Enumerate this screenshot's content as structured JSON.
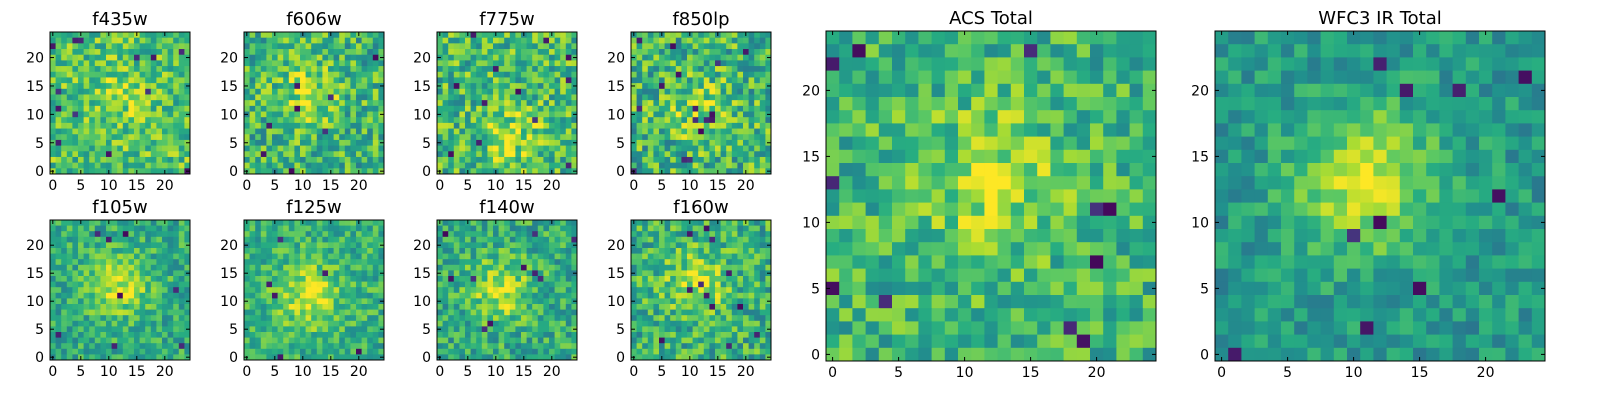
{
  "figure": {
    "description_colormap": "viridis",
    "grid_size": 25
  },
  "chart_data": [
    {
      "type": "heatmap",
      "title": "f435w",
      "cmap": "viridis",
      "rows": 25,
      "cols": 25,
      "xticks": [
        0,
        5,
        10,
        15,
        20
      ],
      "yticks": [
        0,
        5,
        10,
        15,
        20
      ],
      "xlim": [
        0,
        24
      ],
      "ylim": [
        0,
        24
      ],
      "seed": 11,
      "mean": 0.72,
      "noise": 0.22,
      "blob": 0.1,
      "dark_count": 14,
      "blob_center": [
        12,
        13
      ]
    },
    {
      "type": "heatmap",
      "title": "f606w",
      "cmap": "viridis",
      "rows": 25,
      "cols": 25,
      "xticks": [
        0,
        5,
        10,
        15,
        20
      ],
      "yticks": [
        0,
        5,
        10,
        15,
        20
      ],
      "xlim": [
        0,
        24
      ],
      "ylim": [
        0,
        24
      ],
      "seed": 23,
      "mean": 0.66,
      "noise": 0.24,
      "blob": 0.22,
      "dark_count": 8,
      "blob_center": [
        11,
        14
      ]
    },
    {
      "type": "heatmap",
      "title": "f775w",
      "cmap": "viridis",
      "rows": 25,
      "cols": 25,
      "xticks": [
        0,
        5,
        10,
        15,
        20
      ],
      "yticks": [
        0,
        5,
        10,
        15,
        20
      ],
      "xlim": [
        0,
        24
      ],
      "ylim": [
        0,
        24
      ],
      "seed": 37,
      "mean": 0.68,
      "noise": 0.24,
      "blob": 0.18,
      "dark_count": 12,
      "blob_center": [
        13,
        6
      ]
    },
    {
      "type": "heatmap",
      "title": "f850lp",
      "cmap": "viridis",
      "rows": 25,
      "cols": 25,
      "xticks": [
        0,
        5,
        10,
        15,
        20
      ],
      "yticks": [
        0,
        5,
        10,
        15,
        20
      ],
      "xlim": [
        0,
        24
      ],
      "ylim": [
        0,
        24
      ],
      "seed": 41,
      "mean": 0.66,
      "noise": 0.26,
      "blob": 0.2,
      "dark_count": 16,
      "blob_center": [
        12,
        11
      ]
    },
    {
      "type": "heatmap",
      "title": "f105w",
      "cmap": "viridis",
      "rows": 25,
      "cols": 25,
      "xticks": [
        0,
        5,
        10,
        15,
        20
      ],
      "yticks": [
        0,
        5,
        10,
        15,
        20
      ],
      "xlim": [
        0,
        24
      ],
      "ylim": [
        0,
        24
      ],
      "seed": 53,
      "mean": 0.62,
      "noise": 0.18,
      "blob": 0.3,
      "dark_count": 8,
      "blob_center": [
        12,
        13
      ]
    },
    {
      "type": "heatmap",
      "title": "f125w",
      "cmap": "viridis",
      "rows": 25,
      "cols": 25,
      "xticks": [
        0,
        5,
        10,
        15,
        20
      ],
      "yticks": [
        0,
        5,
        10,
        15,
        20
      ],
      "xlim": [
        0,
        24
      ],
      "ylim": [
        0,
        24
      ],
      "seed": 67,
      "mean": 0.64,
      "noise": 0.18,
      "blob": 0.3,
      "dark_count": 6,
      "blob_center": [
        11,
        11
      ]
    },
    {
      "type": "heatmap",
      "title": "f140w",
      "cmap": "viridis",
      "rows": 25,
      "cols": 25,
      "xticks": [
        0,
        5,
        10,
        15,
        20
      ],
      "yticks": [
        0,
        5,
        10,
        15,
        20
      ],
      "xlim": [
        0,
        24
      ],
      "ylim": [
        0,
        24
      ],
      "seed": 79,
      "mean": 0.62,
      "noise": 0.2,
      "blob": 0.28,
      "dark_count": 10,
      "blob_center": [
        11,
        12
      ]
    },
    {
      "type": "heatmap",
      "title": "f160w",
      "cmap": "viridis",
      "rows": 25,
      "cols": 25,
      "xticks": [
        0,
        5,
        10,
        15,
        20
      ],
      "yticks": [
        0,
        5,
        10,
        15,
        20
      ],
      "xlim": [
        0,
        24
      ],
      "ylim": [
        0,
        24
      ],
      "seed": 83,
      "mean": 0.64,
      "noise": 0.22,
      "blob": 0.26,
      "dark_count": 12,
      "blob_center": [
        11,
        13
      ]
    },
    {
      "type": "heatmap",
      "title": "ACS Total",
      "cmap": "viridis",
      "rows": 25,
      "cols": 25,
      "xticks": [
        0,
        5,
        10,
        15,
        20
      ],
      "yticks": [
        0,
        5,
        10,
        15,
        20
      ],
      "xlim": [
        0,
        24
      ],
      "ylim": [
        0,
        24
      ],
      "seed": 97,
      "mean": 0.66,
      "noise": 0.2,
      "blob": 0.22,
      "dark_count": 12,
      "blob_center": [
        12,
        13
      ]
    },
    {
      "type": "heatmap",
      "title": "WFC3 IR Total",
      "cmap": "viridis",
      "rows": 25,
      "cols": 25,
      "xticks": [
        0,
        5,
        10,
        15,
        20
      ],
      "yticks": [
        0,
        5,
        10,
        15,
        20
      ],
      "xlim": [
        0,
        24
      ],
      "ylim": [
        0,
        24
      ],
      "seed": 101,
      "mean": 0.54,
      "noise": 0.14,
      "blob": 0.4,
      "dark_count": 10,
      "blob_center": [
        11,
        13
      ]
    }
  ]
}
